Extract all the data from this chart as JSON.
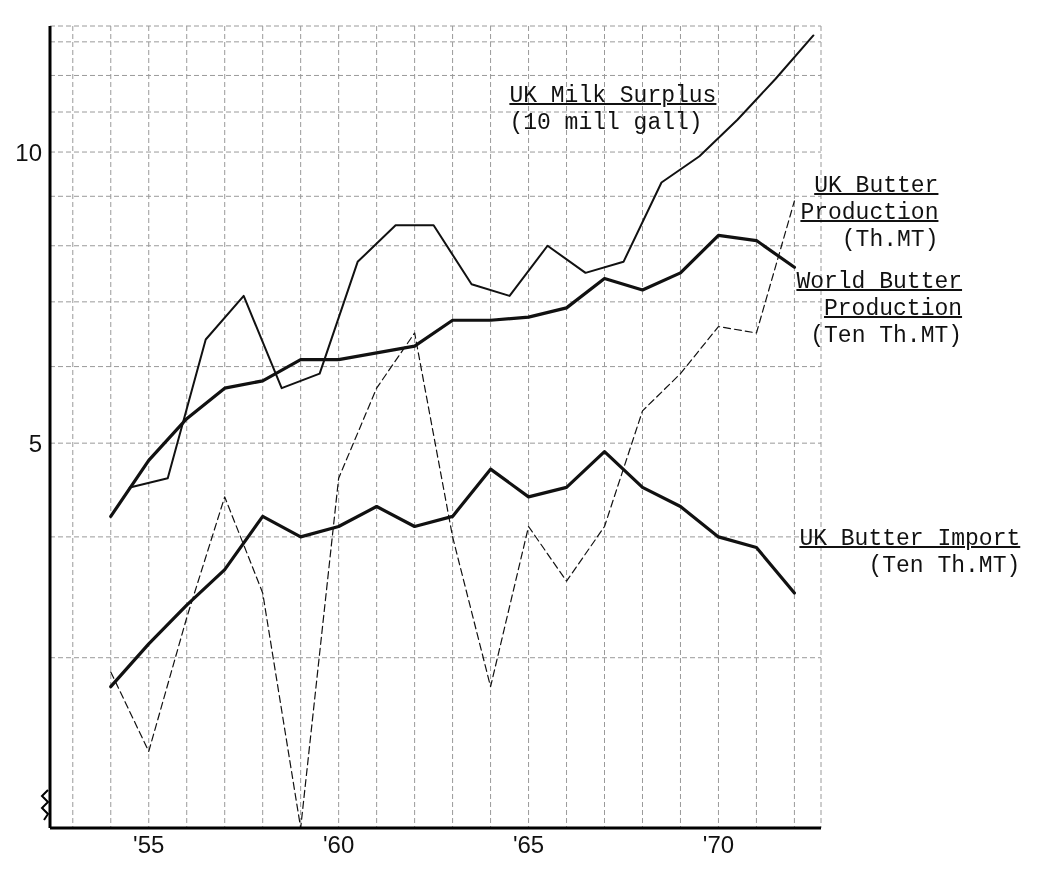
{
  "chart_data": {
    "type": "line",
    "log": true,
    "grid": true,
    "marker": "none",
    "xlim": [
      1952.4,
      1972.7
    ],
    "xticks": [
      {
        "value": 1953,
        "label": null
      },
      {
        "value": 1954,
        "label": null
      },
      {
        "value": 1955,
        "label": "'55"
      },
      {
        "value": 1956,
        "label": null
      },
      {
        "value": 1957,
        "label": null
      },
      {
        "value": 1958,
        "label": null
      },
      {
        "value": 1959,
        "label": null
      },
      {
        "value": 1960,
        "label": "'60"
      },
      {
        "value": 1961,
        "label": null
      },
      {
        "value": 1962,
        "label": null
      },
      {
        "value": 1963,
        "label": null
      },
      {
        "value": 1964,
        "label": null
      },
      {
        "value": 1965,
        "label": "'65"
      },
      {
        "value": 1966,
        "label": null
      },
      {
        "value": 1967,
        "label": null
      },
      {
        "value": 1968,
        "label": null
      },
      {
        "value": 1969,
        "label": null
      },
      {
        "value": 1970,
        "label": "'70"
      },
      {
        "value": 1971,
        "label": null
      },
      {
        "value": 1972,
        "label": null
      }
    ],
    "ylim": [
      2,
      13.5
    ],
    "yticks": [
      {
        "value": 2,
        "label": null
      },
      {
        "value": 3,
        "label": null
      },
      {
        "value": 4,
        "label": null
      },
      5,
      {
        "value": 6,
        "label": null
      },
      {
        "value": 7,
        "label": null
      },
      {
        "value": 8,
        "label": null
      },
      {
        "value": 9,
        "label": null
      },
      10,
      {
        "value": 11,
        "label": null
      },
      {
        "value": 12,
        "label": null
      },
      {
        "value": 13,
        "label": null
      }
    ],
    "x": [
      1954,
      1955,
      1956,
      1957,
      1958,
      1959,
      1960,
      1961,
      1962,
      1963,
      1964,
      1965,
      1966,
      1967,
      1968,
      1969,
      1970,
      1971,
      1972
    ],
    "series": [
      {
        "name": "UK Milk Surplus\n(10 mill gall)",
        "color": "#111111",
        "x": [
          1954.5,
          1955.5,
          1956.5,
          1957.5,
          1958.5,
          1959.5,
          1960.5,
          1961.5,
          1962.5,
          1963.5,
          1964.5,
          1965.5,
          1966.5,
          1967.5,
          1968.5,
          1969.5,
          1970.5,
          1971.5,
          1972.5
        ],
        "values": [
          4.5,
          4.6,
          6.4,
          7.1,
          5.7,
          5.9,
          7.7,
          8.4,
          8.4,
          7.3,
          7.1,
          8.0,
          7.5,
          7.7,
          9.3,
          9.9,
          10.8,
          11.9,
          13.2
        ]
      },
      {
        "name": "UK Butter\nProduction\n(Th.MT)",
        "color": "#111111",
        "line_style": "dashed",
        "values": [
          2.9,
          2.4,
          3.3,
          4.4,
          3.5,
          2.0,
          4.6,
          5.7,
          6.5,
          4.0,
          2.8,
          4.1,
          3.6,
          4.1,
          5.4,
          5.9,
          6.6,
          6.5,
          8.9
        ]
      },
      {
        "name": "World Butter\nProduction\n(Ten Th.MT)",
        "color": "#111111",
        "values": [
          4.2,
          4.8,
          5.3,
          5.7,
          5.8,
          6.1,
          6.1,
          6.2,
          6.3,
          6.7,
          6.7,
          6.75,
          6.9,
          7.4,
          7.2,
          7.5,
          8.2,
          8.1,
          7.6
        ]
      },
      {
        "name": "UK Butter Import\n(Ten Th.MT)",
        "color": "#111111",
        "values": [
          2.8,
          3.1,
          3.4,
          3.7,
          4.2,
          4.0,
          4.1,
          4.3,
          4.1,
          4.2,
          4.7,
          4.4,
          4.5,
          4.9,
          4.5,
          4.3,
          4.0,
          3.9,
          3.5
        ]
      }
    ]
  }
}
